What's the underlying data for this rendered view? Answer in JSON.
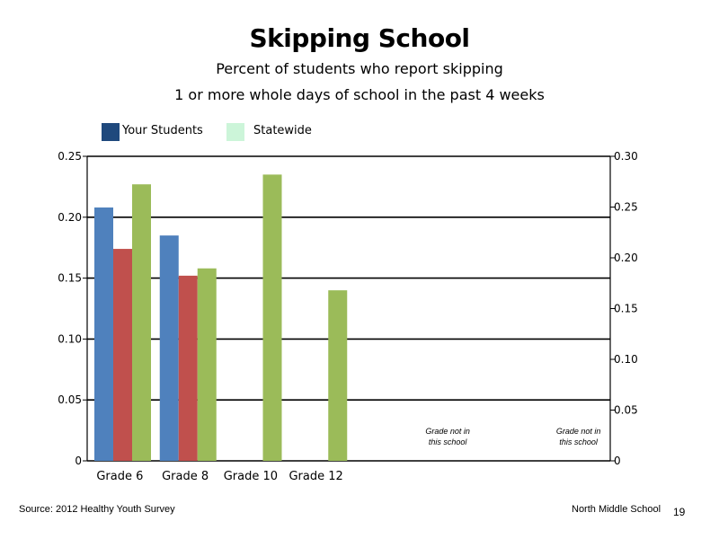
{
  "chart_data": {
    "type": "bar",
    "title": "Skipping School",
    "subtitle_lines": [
      "Percent of students who report skipping",
      "1 or more whole days of school in the past 4 weeks"
    ],
    "categories": [
      "Grade 6",
      "Grade 8",
      "Grade 10",
      "Grade 12"
    ],
    "series": [
      {
        "name": "Your Students",
        "color": "#4f81bd",
        "axis": "left",
        "values": [
          0.208,
          0.185,
          null,
          null
        ]
      },
      {
        "name": "",
        "color": "#c0504d",
        "axis": "left",
        "values": [
          0.174,
          0.152,
          null,
          null
        ]
      },
      {
        "name": "Statewide",
        "color": "#9bbb59",
        "axis": "left",
        "values": [
          0.227,
          0.158,
          0.235,
          0.14
        ]
      }
    ],
    "legend": {
      "placement": "top-left",
      "items": [
        {
          "label": "Your Students",
          "color": "#1f497d"
        },
        {
          "label": "Statewide",
          "color": "#ccf5d9"
        }
      ]
    },
    "y_left": {
      "range": [
        0,
        0.25
      ],
      "ticks": [
        "0",
        "0.05",
        "0.10",
        "0.15",
        "0.20",
        "0.25"
      ]
    },
    "y_right": {
      "range": [
        0,
        0.3
      ],
      "ticks": [
        "0",
        "0.05",
        "0.10",
        "0.15",
        "0.20",
        "0.25",
        "0.30"
      ]
    },
    "gridlines": "horizontal (left axis)",
    "annotations": [
      "Grade not in this school",
      "Grade not in this school"
    ]
  },
  "footer": {
    "source": "Source: 2012 Healthy Youth Survey",
    "school": "North Middle School",
    "page": "19"
  }
}
